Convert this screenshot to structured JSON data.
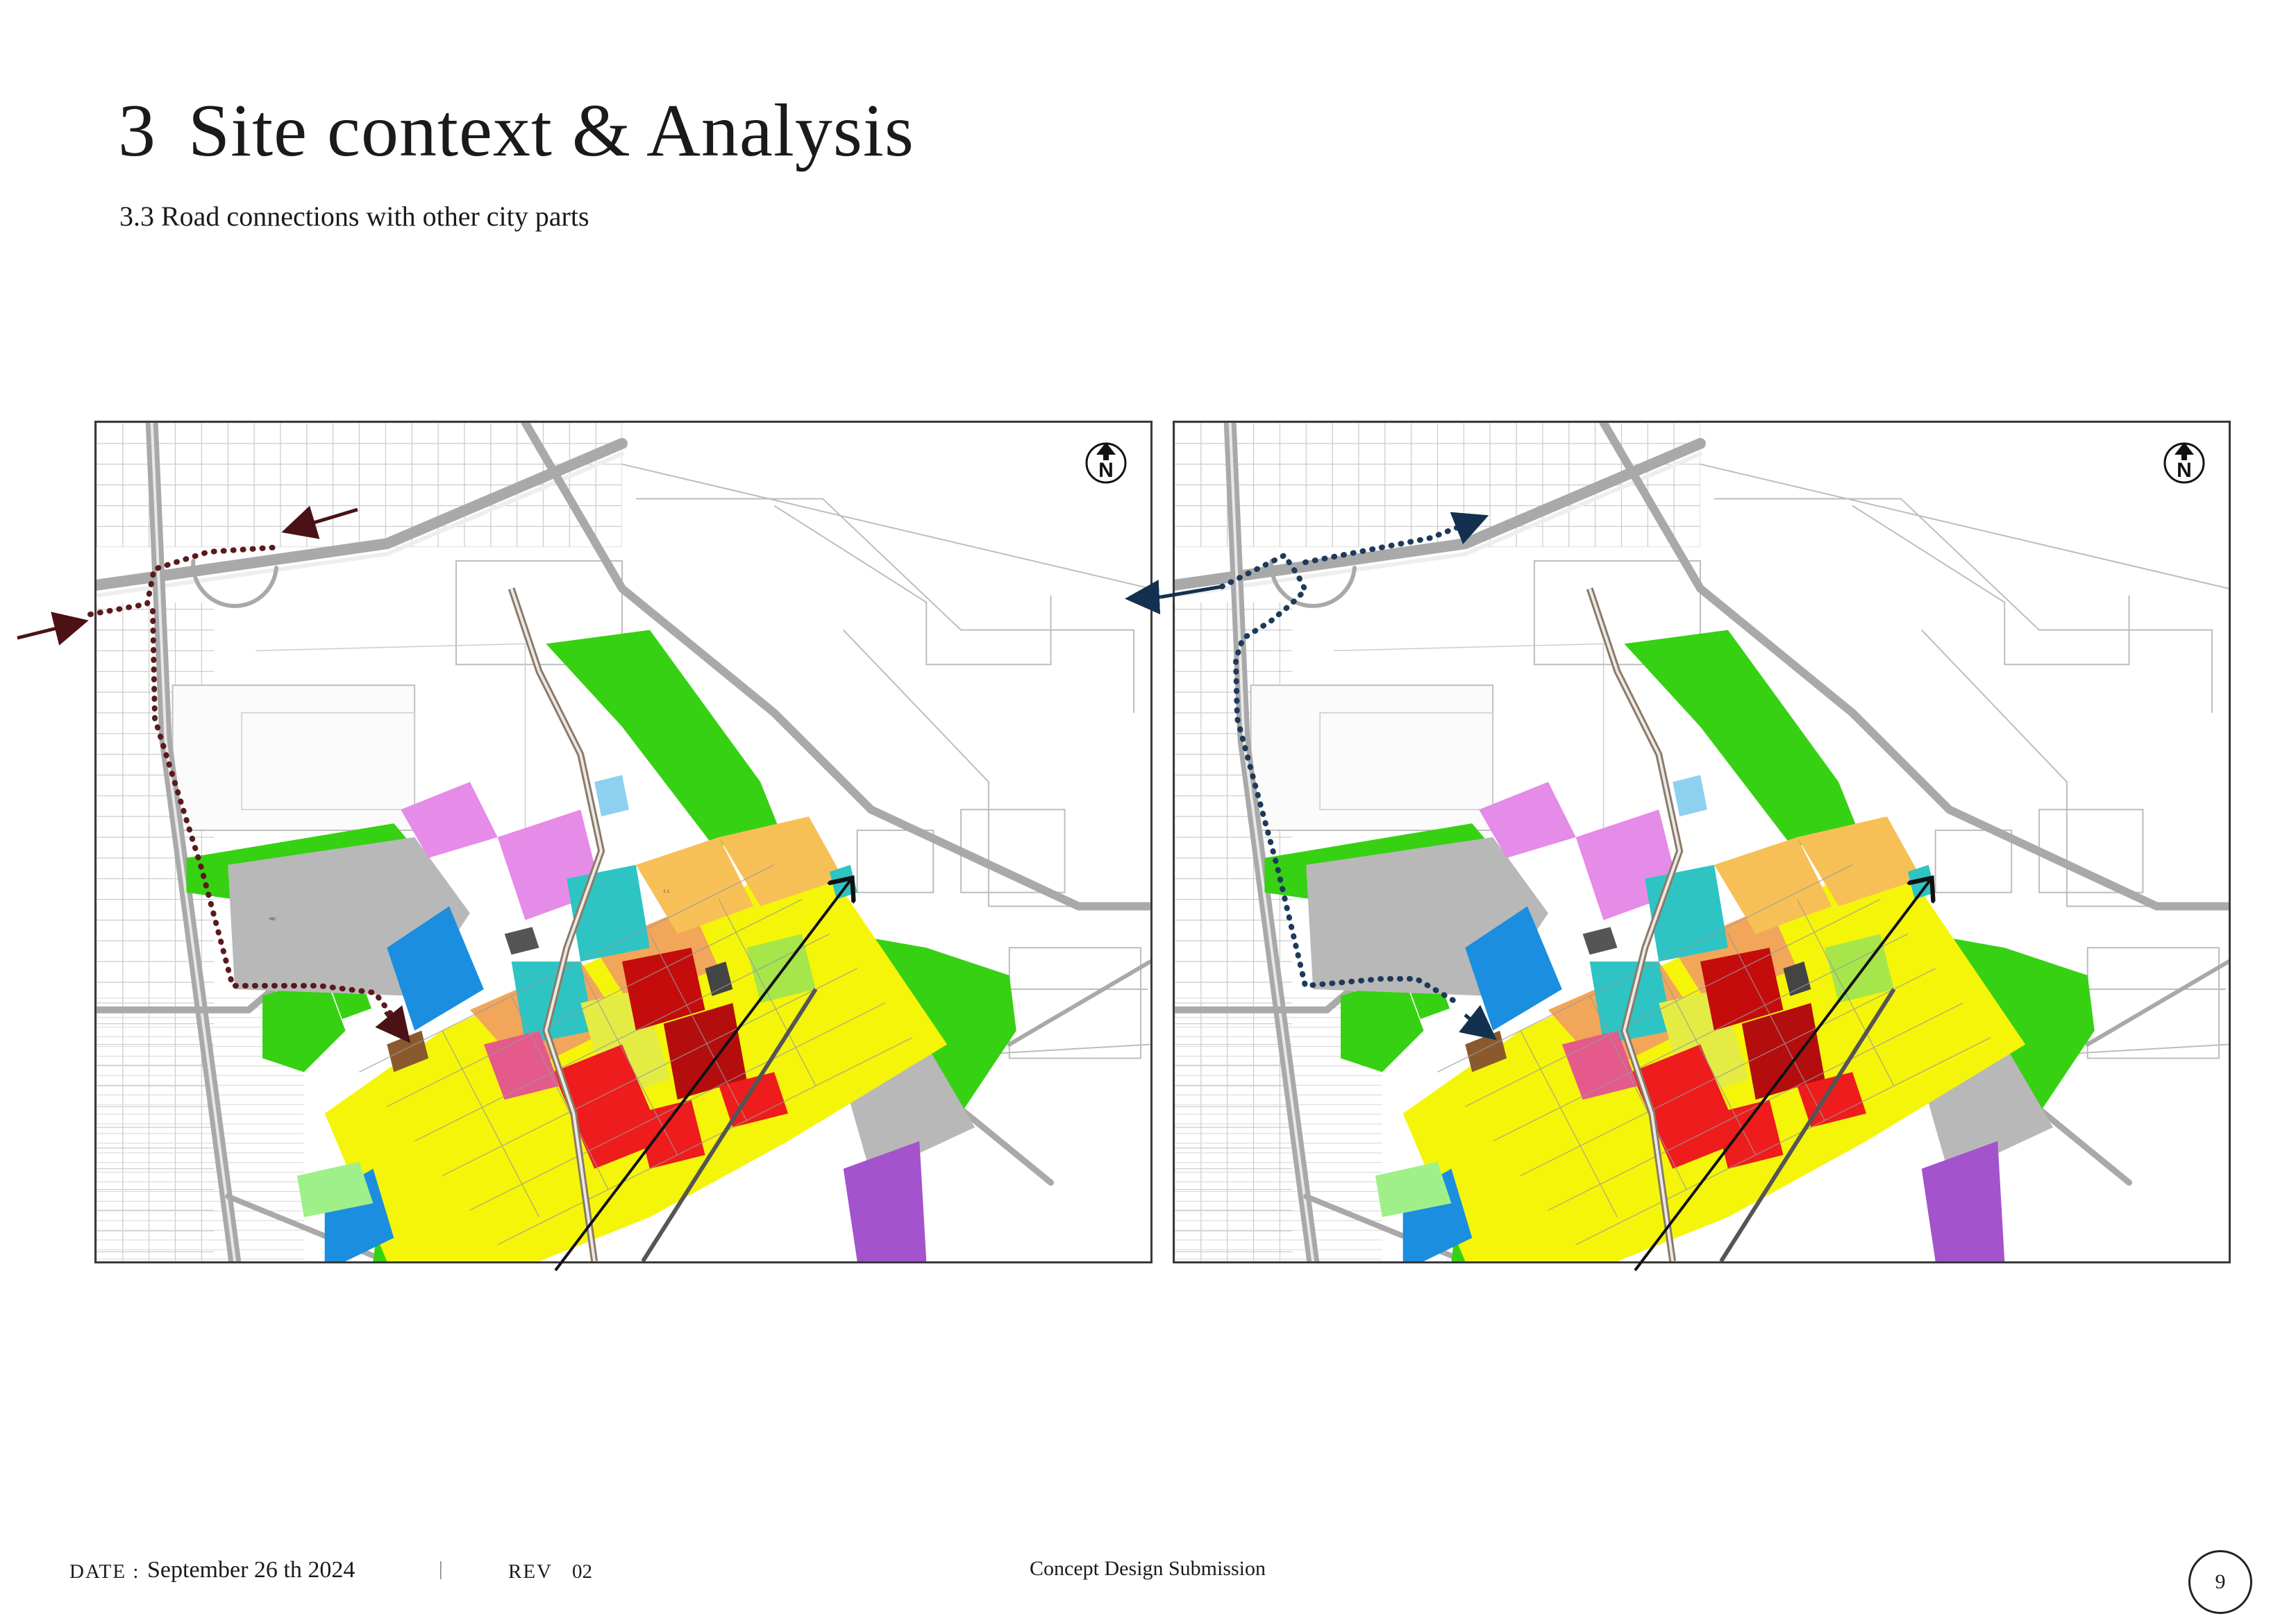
{
  "header": {
    "section_number": "3",
    "title": "Site context & Analysis",
    "subtitle": "3.3 Road connections with other city parts"
  },
  "maps": {
    "north_label": "N",
    "left": {
      "route_color": "#4a1214"
    },
    "right": {
      "route_color": "#13314f"
    }
  },
  "footer": {
    "date_label": "DATE :",
    "date_value": "September 26 th 2024",
    "separator": "|",
    "rev_label": "REV",
    "rev_value": "02",
    "doc_type": "Concept Design Submission",
    "page_number": "9"
  }
}
